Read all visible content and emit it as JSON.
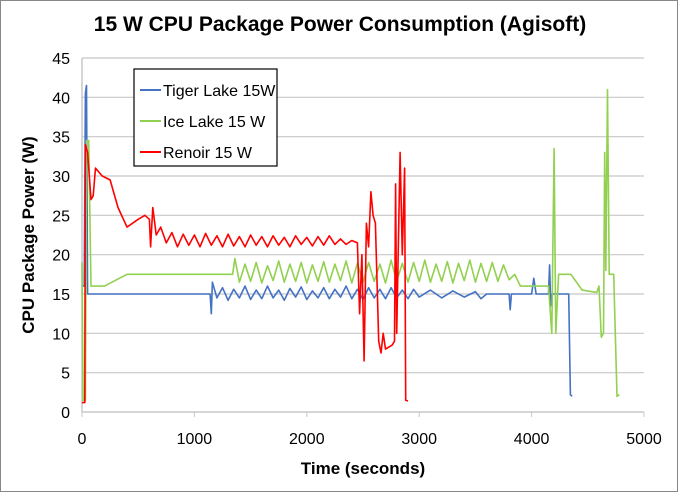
{
  "chart_data": {
    "type": "line",
    "title": "15 W CPU Package Power Consumption (Agisoft)",
    "xlabel": "Time (seconds)",
    "ylabel": "CPU Package Power (W)",
    "xlim": [
      0,
      5000
    ],
    "ylim": [
      0,
      45
    ],
    "xticks": [
      0,
      1000,
      2000,
      3000,
      4000,
      5000
    ],
    "yticks": [
      0,
      5,
      10,
      15,
      20,
      25,
      30,
      35,
      40,
      45
    ],
    "grid": "horizontal",
    "legend": "top-left",
    "series": [
      {
        "name": "Tiger Lake 15W",
        "color": "#4472c4",
        "points": [
          [
            0,
            16
          ],
          [
            20,
            16
          ],
          [
            30,
            40.5
          ],
          [
            40,
            41.5
          ],
          [
            50,
            15
          ],
          [
            100,
            15
          ],
          [
            600,
            15
          ],
          [
            1140,
            15
          ],
          [
            1150,
            12.5
          ],
          [
            1160,
            16.5
          ],
          [
            1200,
            14.5
          ],
          [
            1250,
            15.8
          ],
          [
            1300,
            14.2
          ],
          [
            1350,
            15.6
          ],
          [
            1400,
            14.5
          ],
          [
            1450,
            16
          ],
          [
            1500,
            14.3
          ],
          [
            1550,
            15.5
          ],
          [
            1600,
            14.4
          ],
          [
            1650,
            16
          ],
          [
            1700,
            14.5
          ],
          [
            1750,
            15.5
          ],
          [
            1800,
            14.2
          ],
          [
            1850,
            15.7
          ],
          [
            1900,
            14.6
          ],
          [
            1950,
            15.9
          ],
          [
            2000,
            14.3
          ],
          [
            2050,
            15.4
          ],
          [
            2100,
            14.5
          ],
          [
            2150,
            15.8
          ],
          [
            2200,
            14.4
          ],
          [
            2250,
            15.6
          ],
          [
            2300,
            14.6
          ],
          [
            2350,
            16
          ],
          [
            2400,
            14.4
          ],
          [
            2450,
            15.6
          ],
          [
            2500,
            14.3
          ],
          [
            2550,
            15.8
          ],
          [
            2600,
            14.5
          ],
          [
            2650,
            15.6
          ],
          [
            2700,
            14.4
          ],
          [
            2750,
            15.8
          ],
          [
            2800,
            14.5
          ],
          [
            2850,
            15.5
          ],
          [
            2900,
            14.4
          ],
          [
            2950,
            15.6
          ],
          [
            3000,
            14.6
          ],
          [
            3100,
            15.5
          ],
          [
            3200,
            14.5
          ],
          [
            3300,
            15.4
          ],
          [
            3400,
            14.6
          ],
          [
            3500,
            15.3
          ],
          [
            3550,
            14.4
          ],
          [
            3600,
            15
          ],
          [
            3800,
            15
          ],
          [
            3810,
            13
          ],
          [
            3820,
            15
          ],
          [
            4000,
            15
          ],
          [
            4020,
            17
          ],
          [
            4040,
            15
          ],
          [
            4150,
            15
          ],
          [
            4160,
            18.7
          ],
          [
            4170,
            13.5
          ],
          [
            4180,
            15
          ],
          [
            4330,
            15
          ],
          [
            4345,
            2.2
          ],
          [
            4360,
            2
          ]
        ]
      },
      {
        "name": "Ice Lake 15 W",
        "color": "#92d050",
        "points": [
          [
            0,
            19
          ],
          [
            10,
            1.5
          ],
          [
            30,
            1.5
          ],
          [
            40,
            34.5
          ],
          [
            60,
            34.5
          ],
          [
            80,
            16
          ],
          [
            200,
            16
          ],
          [
            400,
            17.5
          ],
          [
            800,
            17.5
          ],
          [
            1340,
            17.5
          ],
          [
            1360,
            19.5
          ],
          [
            1400,
            16.5
          ],
          [
            1450,
            18.8
          ],
          [
            1500,
            16.6
          ],
          [
            1550,
            19
          ],
          [
            1600,
            16.4
          ],
          [
            1650,
            18.6
          ],
          [
            1700,
            16.7
          ],
          [
            1750,
            19.2
          ],
          [
            1800,
            16.5
          ],
          [
            1850,
            18.8
          ],
          [
            1900,
            16.6
          ],
          [
            1950,
            19
          ],
          [
            2000,
            16.4
          ],
          [
            2050,
            18.7
          ],
          [
            2100,
            16.6
          ],
          [
            2150,
            19.1
          ],
          [
            2200,
            16.5
          ],
          [
            2250,
            18.8
          ],
          [
            2300,
            16.7
          ],
          [
            2350,
            19.2
          ],
          [
            2400,
            16.4
          ],
          [
            2450,
            18.9
          ],
          [
            2500,
            16.5
          ],
          [
            2550,
            19
          ],
          [
            2600,
            16.6
          ],
          [
            2650,
            18.8
          ],
          [
            2700,
            16.4
          ],
          [
            2750,
            19.3
          ],
          [
            2800,
            16.6
          ],
          [
            2850,
            18.9
          ],
          [
            2900,
            16.5
          ],
          [
            2950,
            19
          ],
          [
            3000,
            16.6
          ],
          [
            3050,
            19.3
          ],
          [
            3100,
            16.5
          ],
          [
            3150,
            18.8
          ],
          [
            3200,
            16.6
          ],
          [
            3250,
            19.1
          ],
          [
            3300,
            16.4
          ],
          [
            3350,
            18.9
          ],
          [
            3400,
            16.7
          ],
          [
            3450,
            19.3
          ],
          [
            3500,
            16.5
          ],
          [
            3550,
            18.9
          ],
          [
            3600,
            16.6
          ],
          [
            3650,
            19
          ],
          [
            3700,
            16.6
          ],
          [
            3750,
            18.7
          ],
          [
            3800,
            16.8
          ],
          [
            3850,
            17.5
          ],
          [
            3900,
            16
          ],
          [
            4150,
            16
          ],
          [
            4180,
            10
          ],
          [
            4200,
            33.5
          ],
          [
            4215,
            10
          ],
          [
            4240,
            17.5
          ],
          [
            4350,
            17.5
          ],
          [
            4450,
            15.5
          ],
          [
            4580,
            15.2
          ],
          [
            4600,
            16
          ],
          [
            4620,
            9.5
          ],
          [
            4640,
            10
          ],
          [
            4650,
            33
          ],
          [
            4660,
            18
          ],
          [
            4675,
            41
          ],
          [
            4690,
            17.5
          ],
          [
            4730,
            17.5
          ],
          [
            4760,
            2
          ],
          [
            4780,
            2.2
          ]
        ]
      },
      {
        "name": "Renoir 15 W",
        "color": "#ff0000",
        "points": [
          [
            0,
            1.2
          ],
          [
            25,
            1.2
          ],
          [
            30,
            34
          ],
          [
            50,
            33
          ],
          [
            80,
            27
          ],
          [
            100,
            27.5
          ],
          [
            120,
            31
          ],
          [
            180,
            30
          ],
          [
            250,
            29.5
          ],
          [
            320,
            26
          ],
          [
            400,
            23.5
          ],
          [
            500,
            24.5
          ],
          [
            560,
            25
          ],
          [
            600,
            24.5
          ],
          [
            610,
            21
          ],
          [
            630,
            26
          ],
          [
            660,
            22.5
          ],
          [
            700,
            23.5
          ],
          [
            750,
            21.5
          ],
          [
            800,
            22.8
          ],
          [
            850,
            21
          ],
          [
            900,
            22.6
          ],
          [
            950,
            21.2
          ],
          [
            1000,
            22.5
          ],
          [
            1050,
            21
          ],
          [
            1100,
            22.7
          ],
          [
            1150,
            21.2
          ],
          [
            1200,
            22.4
          ],
          [
            1250,
            21
          ],
          [
            1300,
            22.6
          ],
          [
            1350,
            21.1
          ],
          [
            1400,
            22.3
          ],
          [
            1450,
            21
          ],
          [
            1500,
            22.5
          ],
          [
            1550,
            21.2
          ],
          [
            1600,
            22.3
          ],
          [
            1650,
            21
          ],
          [
            1700,
            22.4
          ],
          [
            1750,
            21.2
          ],
          [
            1800,
            22.2
          ],
          [
            1850,
            21
          ],
          [
            1900,
            22.4
          ],
          [
            1950,
            21.3
          ],
          [
            2000,
            22.2
          ],
          [
            2050,
            21.1
          ],
          [
            2100,
            22.3
          ],
          [
            2150,
            21.2
          ],
          [
            2200,
            22.4
          ],
          [
            2250,
            21.3
          ],
          [
            2300,
            22
          ],
          [
            2350,
            21.3
          ],
          [
            2400,
            21.8
          ],
          [
            2450,
            21.5
          ],
          [
            2470,
            12.5
          ],
          [
            2490,
            20
          ],
          [
            2510,
            6.5
          ],
          [
            2530,
            24
          ],
          [
            2550,
            21
          ],
          [
            2570,
            28
          ],
          [
            2590,
            25
          ],
          [
            2610,
            24
          ],
          [
            2640,
            9
          ],
          [
            2660,
            7.5
          ],
          [
            2680,
            10
          ],
          [
            2700,
            8
          ],
          [
            2760,
            8.5
          ],
          [
            2780,
            9
          ],
          [
            2790,
            29
          ],
          [
            2800,
            10
          ],
          [
            2830,
            33
          ],
          [
            2850,
            20
          ],
          [
            2870,
            31
          ],
          [
            2880,
            1.5
          ],
          [
            2900,
            1.4
          ]
        ]
      }
    ]
  }
}
